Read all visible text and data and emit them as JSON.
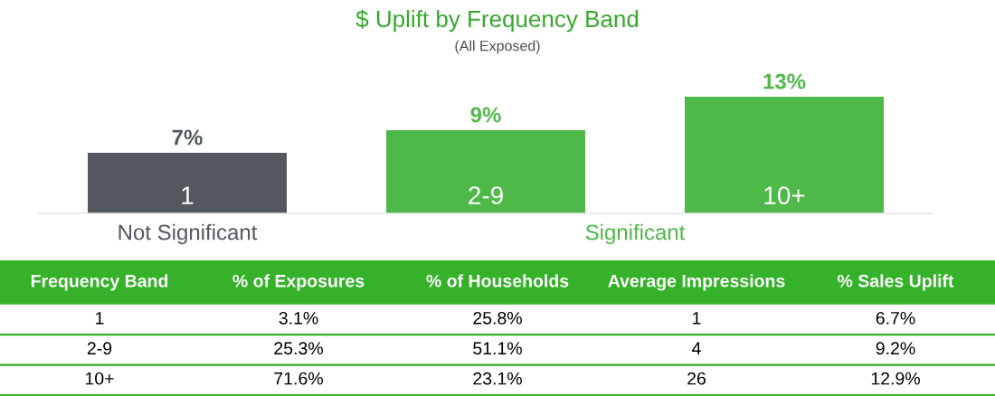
{
  "chart_data": [
    {
      "type": "bar",
      "title": "$ Uplift by Frequency Band",
      "subtitle": "(All Exposed)",
      "categories": [
        "1",
        "2-9",
        "10+"
      ],
      "values": [
        6.7,
        9.2,
        12.9
      ],
      "colors": [
        "#53575e",
        "#4eb848",
        "#4eb848"
      ],
      "value_labels": [
        "7%",
        "9%",
        "13%"
      ],
      "tick_labels": "x",
      "annotations": [
        "Not Significant",
        "Significant"
      ]
    },
    {
      "type": "other",
      "color": "#35b12a",
      "categories": [
        "Frequency Band",
        "% of Exposures",
        "% of Households",
        "Average Impressions",
        "% Sales Uplift"
      ],
      "annotations": [
        "1",
        "3.1%",
        "25.8%",
        "1",
        "6.7%",
        "2-9",
        "25.3%",
        "51.1%",
        "4",
        "9.2%",
        "10+",
        "71.6%",
        "23.1%",
        "26",
        "12.9%"
      ]
    }
  ]
}
